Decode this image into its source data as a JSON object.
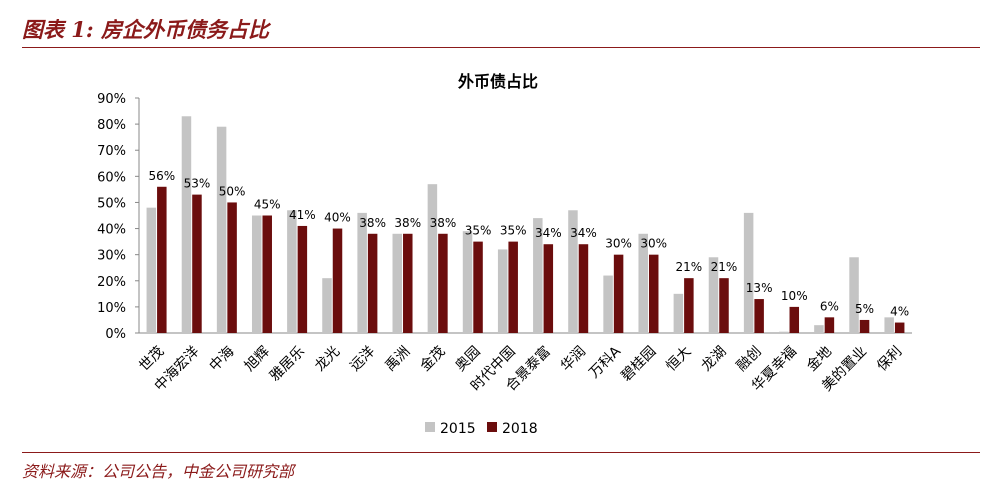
{
  "figure": {
    "title": "图表 1: 房企外币债务占比",
    "source": "资料来源：公司公告，中金公司研究部"
  },
  "colors": {
    "accent": "#8b1a1a",
    "series_2015": "#c4c4c4",
    "series_2018": "#6b0d0d"
  },
  "chart_data": {
    "type": "bar",
    "title": "外币债占比",
    "xlabel": "",
    "ylabel": "",
    "ylim": [
      0,
      90
    ],
    "y_ticks": [
      "0%",
      "10%",
      "20%",
      "30%",
      "40%",
      "50%",
      "60%",
      "70%",
      "80%",
      "90%"
    ],
    "grid": false,
    "legend_position": "bottom",
    "categories": [
      "世茂",
      "中海宏洋",
      "中海",
      "旭辉",
      "雅居乐",
      "龙光",
      "远洋",
      "禹洲",
      "金茂",
      "奥园",
      "时代中国",
      "合景泰富",
      "华润",
      "万科A",
      "碧桂园",
      "恒大",
      "龙湖",
      "融创",
      "华夏幸福",
      "金地",
      "美的置业",
      "保利"
    ],
    "series": [
      {
        "name": "2015",
        "values": [
          48,
          83,
          79,
          45,
          47,
          21,
          46,
          38,
          57,
          39,
          32,
          44,
          47,
          22,
          38,
          15,
          29,
          46,
          0.5,
          3,
          29,
          6
        ]
      },
      {
        "name": "2018",
        "values": [
          56,
          53,
          50,
          45,
          41,
          40,
          38,
          38,
          38,
          35,
          35,
          34,
          34,
          30,
          30,
          21,
          21,
          13,
          10,
          6,
          5,
          4
        ],
        "labels": [
          "56%",
          "53%",
          "50%",
          "45%",
          "41%",
          "40%",
          "38%",
          "38%",
          "38%",
          "35%",
          "35%",
          "34%",
          "34%",
          "30%",
          "30%",
          "21%",
          "21%",
          "13%",
          "10%",
          "6%",
          "5%",
          "4%"
        ]
      }
    ]
  }
}
